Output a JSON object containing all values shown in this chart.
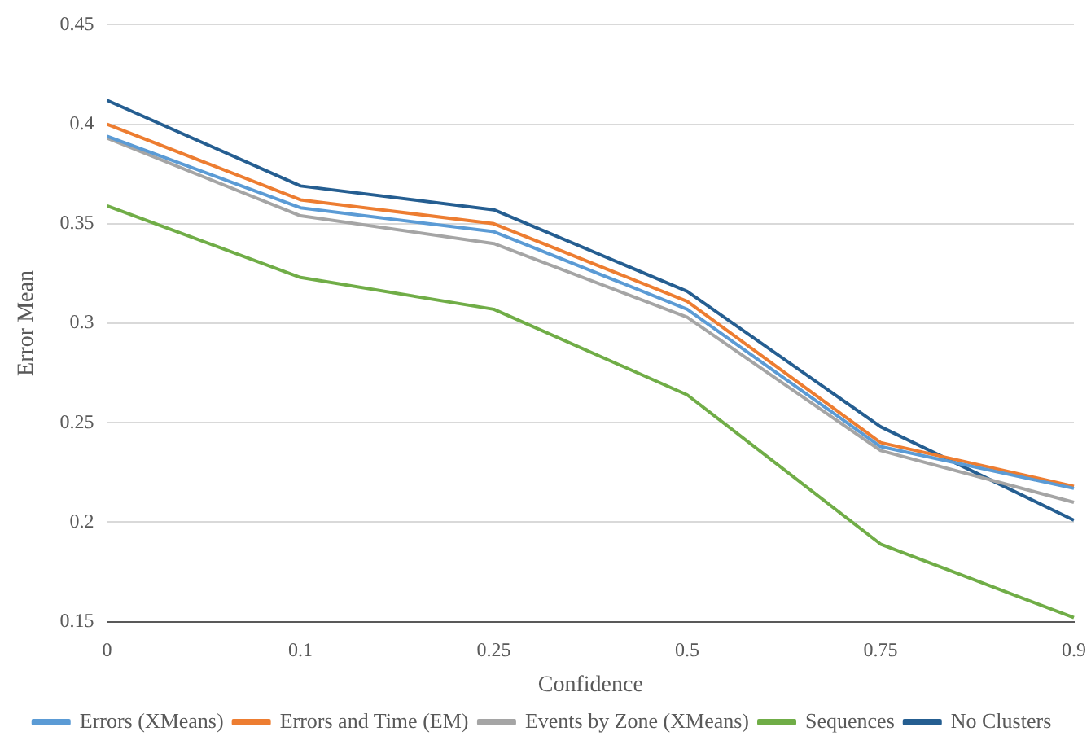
{
  "chart_data": {
    "type": "line",
    "xlabel": "Confidence",
    "ylabel": "Error Mean",
    "categories": [
      "0",
      "0.1",
      "0.25",
      "0.5",
      "0.75",
      "0.9"
    ],
    "series": [
      {
        "name": "Errors (XMeans)",
        "color": "#5b9bd5",
        "values": [
          0.394,
          0.358,
          0.346,
          0.307,
          0.238,
          0.217
        ]
      },
      {
        "name": "Errors and Time (EM)",
        "color": "#ed7d31",
        "values": [
          0.4,
          0.362,
          0.35,
          0.311,
          0.24,
          0.218
        ]
      },
      {
        "name": "Events by Zone (XMeans)",
        "color": "#a5a5a5",
        "values": [
          0.393,
          0.354,
          0.34,
          0.303,
          0.236,
          0.21
        ]
      },
      {
        "name": "Sequences",
        "color": "#70ad47",
        "values": [
          0.359,
          0.323,
          0.307,
          0.264,
          0.189,
          0.152
        ]
      },
      {
        "name": "No Clusters",
        "color": "#255e91",
        "values": [
          0.412,
          0.369,
          0.357,
          0.316,
          0.248,
          0.201
        ]
      }
    ],
    "ylim": [
      0.15,
      0.45
    ],
    "yticks": [
      0.15,
      0.2,
      0.25,
      0.3,
      0.35,
      0.4,
      0.45
    ],
    "grid": "y",
    "legend": "bottom",
    "marker": "none",
    "line_style": "solid"
  }
}
